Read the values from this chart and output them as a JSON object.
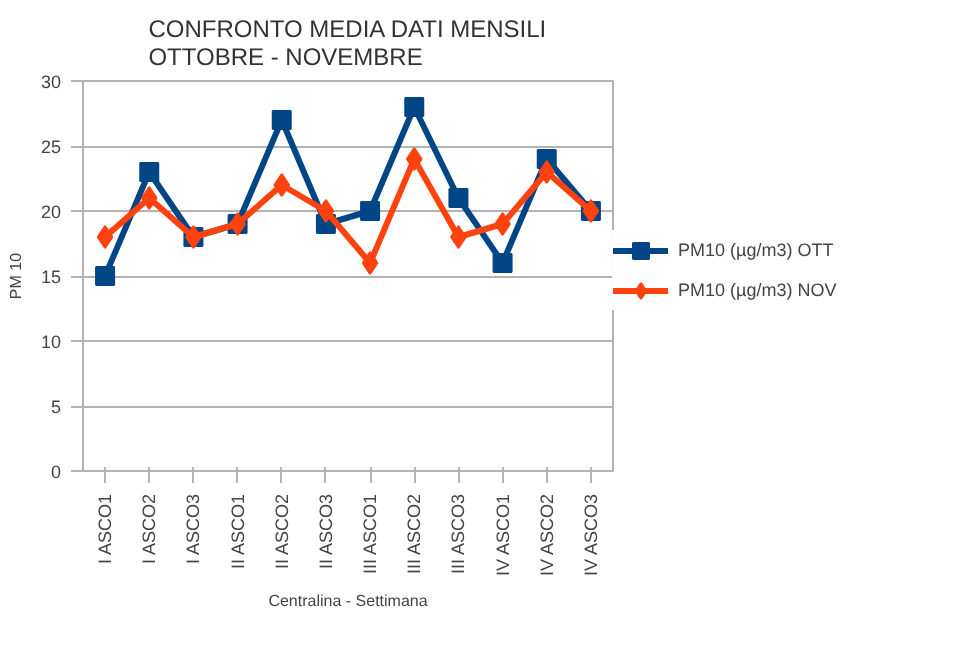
{
  "chart_data": {
    "type": "line",
    "title": "CONFRONTO MEDIA DATI MENSILI\nOTTOBRE - NOVEMBRE",
    "xlabel": "Centralina - Settimana",
    "ylabel": "PM 10",
    "categories": [
      "I ASCO1",
      "I ASCO2",
      "I ASCO3",
      "II ASCO1",
      "II ASCO2",
      "II ASCO3",
      "III ASCO1",
      "III ASCO2",
      "III ASCO3",
      "IV ASCO1",
      "IV ASCO2",
      "IV ASCO3"
    ],
    "series": [
      {
        "name": "PM10 (µg/m3) OTT",
        "color": "#004586",
        "marker": "square",
        "values": [
          15,
          23,
          18,
          19,
          27,
          19,
          20,
          28,
          21,
          16,
          24,
          20
        ]
      },
      {
        "name": "PM10 (µg/m3) NOV",
        "color": "#ff420e",
        "marker": "diamond",
        "values": [
          18,
          21,
          18,
          19,
          22,
          20,
          16,
          24,
          18,
          19,
          23,
          20
        ]
      }
    ],
    "ylim": [
      0,
      30
    ],
    "yticks": [
      0,
      5,
      10,
      15,
      20,
      25,
      30
    ],
    "grid": "y",
    "legend": "right"
  }
}
